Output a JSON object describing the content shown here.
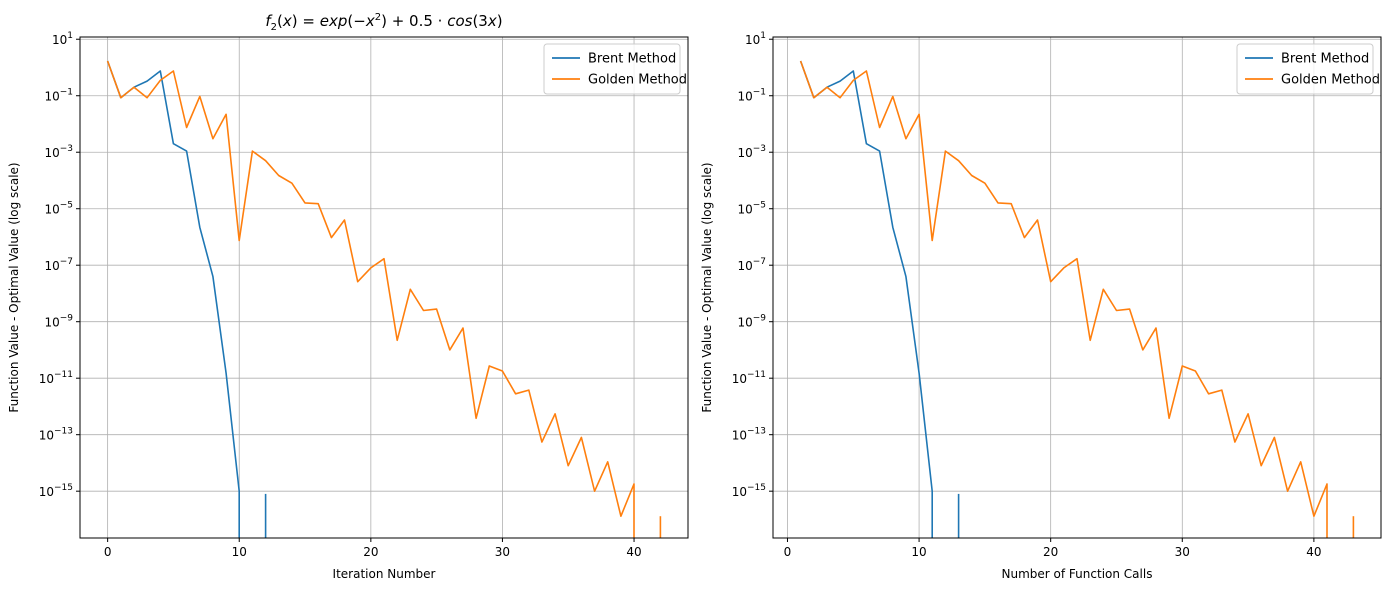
{
  "chart_data": [
    {
      "type": "line",
      "title": "f_2(x) = exp(-x^2) + 0.5·cos(3x)",
      "xlabel": "Iteration Number",
      "ylabel": "Function Value - Optimal Value (log scale)",
      "yscale": "log",
      "xlim": [
        -2.1,
        44.1
      ],
      "ylim": [
        2.2e-17,
        12
      ],
      "xticks": [
        0,
        10,
        20,
        30,
        40
      ],
      "yticks": [
        1e-15,
        1e-13,
        1e-11,
        1e-09,
        1e-07,
        1e-05,
        0.001,
        0.1,
        10.0
      ],
      "grid": true,
      "legend": "top-right",
      "series": [
        {
          "name": "Brent Method",
          "color": "#1f77b4",
          "segments": [
            [
              [
                0,
                1.7
              ],
              [
                1,
                0.085
              ],
              [
                2,
                0.2
              ],
              [
                3,
                0.33
              ],
              [
                4,
                0.75
              ],
              [
                5,
                0.002
              ],
              [
                6,
                0.0011
              ],
              [
                7,
                2.2e-06
              ],
              [
                8,
                4e-08
              ],
              [
                9,
                1.5e-11
              ],
              [
                10,
                1e-15
              ],
              [
                10,
                1e-18
              ]
            ],
            [
              [
                12,
                1e-18
              ],
              [
                12,
                8e-16
              ]
            ]
          ]
        },
        {
          "name": "Golden Method",
          "color": "#ff7f0e",
          "segments": [
            [
              [
                0,
                1.7
              ],
              [
                1,
                0.085
              ],
              [
                2,
                0.2
              ],
              [
                3,
                0.085
              ],
              [
                4,
                0.35
              ],
              [
                5,
                0.75
              ],
              [
                6,
                0.0075
              ],
              [
                7,
                0.095
              ],
              [
                8,
                0.003
              ],
              [
                9,
                0.022
              ],
              [
                10,
                7.5e-07
              ],
              [
                11,
                0.0011
              ],
              [
                12,
                0.0005
              ],
              [
                13,
                0.00015
              ],
              [
                14,
                8e-05
              ],
              [
                15,
                1.6e-05
              ],
              [
                16,
                1.5e-05
              ],
              [
                17,
                9.5e-07
              ],
              [
                18,
                4e-06
              ],
              [
                19,
                2.6e-08
              ],
              [
                20,
                8e-08
              ],
              [
                21,
                1.7e-07
              ],
              [
                22,
                2.2e-10
              ],
              [
                23,
                1.4e-08
              ],
              [
                24,
                2.5e-09
              ],
              [
                25,
                2.8e-09
              ],
              [
                26,
                1e-10
              ],
              [
                27,
                6e-10
              ],
              [
                28,
                3.8e-13
              ],
              [
                29,
                2.7e-11
              ],
              [
                30,
                1.8e-11
              ],
              [
                31,
                2.8e-12
              ],
              [
                32,
                3.8e-12
              ],
              [
                33,
                5.5e-14
              ],
              [
                34,
                5.5e-13
              ],
              [
                35,
                8e-15
              ],
              [
                36,
                8e-14
              ],
              [
                37,
                1e-15
              ],
              [
                38,
                1.1e-14
              ],
              [
                39,
                1.3e-16
              ],
              [
                40,
                1.8e-15
              ],
              [
                40,
                1e-18
              ]
            ],
            [
              [
                42,
                1e-18
              ],
              [
                42,
                1.3e-16
              ]
            ]
          ]
        }
      ]
    },
    {
      "type": "line",
      "title": "",
      "xlabel": "Number of Function Calls",
      "ylabel": "Function Value - Optimal Value (log scale)",
      "yscale": "log",
      "xlim": [
        -1.1,
        45.1
      ],
      "ylim": [
        2.2e-17,
        12
      ],
      "xticks": [
        0,
        10,
        20,
        30,
        40
      ],
      "yticks": [
        1e-15,
        1e-13,
        1e-11,
        1e-09,
        1e-07,
        1e-05,
        0.001,
        0.1,
        10.0
      ],
      "grid": true,
      "legend": "top-right",
      "series": [
        {
          "name": "Brent Method",
          "color": "#1f77b4",
          "segments": [
            [
              [
                1,
                1.7
              ],
              [
                2,
                0.085
              ],
              [
                3,
                0.2
              ],
              [
                4,
                0.33
              ],
              [
                5,
                0.75
              ],
              [
                6,
                0.002
              ],
              [
                7,
                0.0011
              ],
              [
                8,
                2.2e-06
              ],
              [
                9,
                4e-08
              ],
              [
                10,
                1.5e-11
              ],
              [
                11,
                1e-15
              ],
              [
                11,
                1e-18
              ]
            ],
            [
              [
                13,
                1e-18
              ],
              [
                13,
                8e-16
              ]
            ]
          ]
        },
        {
          "name": "Golden Method",
          "color": "#ff7f0e",
          "segments": [
            [
              [
                1,
                1.7
              ],
              [
                2,
                0.085
              ],
              [
                3,
                0.2
              ],
              [
                4,
                0.085
              ],
              [
                5,
                0.35
              ],
              [
                6,
                0.75
              ],
              [
                7,
                0.0075
              ],
              [
                8,
                0.095
              ],
              [
                9,
                0.003
              ],
              [
                10,
                0.022
              ],
              [
                11,
                7.5e-07
              ],
              [
                12,
                0.0011
              ],
              [
                13,
                0.0005
              ],
              [
                14,
                0.00015
              ],
              [
                15,
                8e-05
              ],
              [
                16,
                1.6e-05
              ],
              [
                17,
                1.5e-05
              ],
              [
                18,
                9.5e-07
              ],
              [
                19,
                4e-06
              ],
              [
                20,
                2.6e-08
              ],
              [
                21,
                8e-08
              ],
              [
                22,
                1.7e-07
              ],
              [
                23,
                2.2e-10
              ],
              [
                24,
                1.4e-08
              ],
              [
                25,
                2.5e-09
              ],
              [
                26,
                2.8e-09
              ],
              [
                27,
                1e-10
              ],
              [
                28,
                6e-10
              ],
              [
                29,
                3.8e-13
              ],
              [
                30,
                2.7e-11
              ],
              [
                31,
                1.8e-11
              ],
              [
                32,
                2.8e-12
              ],
              [
                33,
                3.8e-12
              ],
              [
                34,
                5.5e-14
              ],
              [
                35,
                5.5e-13
              ],
              [
                36,
                8e-15
              ],
              [
                37,
                8e-14
              ],
              [
                38,
                1e-15
              ],
              [
                39,
                1.1e-14
              ],
              [
                40,
                1.3e-16
              ],
              [
                41,
                1.8e-15
              ],
              [
                41,
                1e-18
              ]
            ],
            [
              [
                43,
                1e-18
              ],
              [
                43,
                1.3e-16
              ]
            ]
          ]
        }
      ]
    }
  ]
}
